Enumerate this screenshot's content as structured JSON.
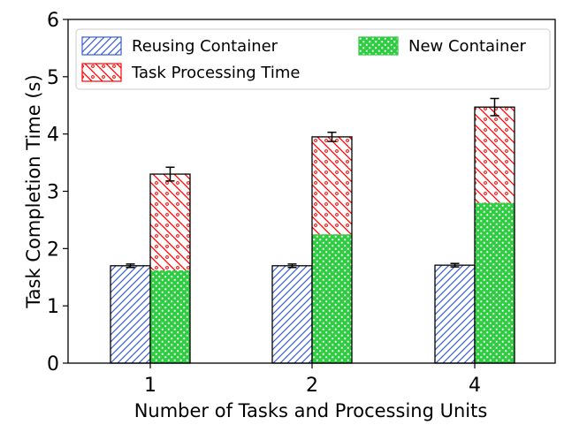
{
  "chart_data": {
    "type": "bar",
    "stacked_group": true,
    "categories": [
      "1",
      "2",
      "4"
    ],
    "xlabel": "Number of Tasks and Processing Units",
    "ylabel": "Task Completion Time (s)",
    "ylim": [
      0,
      6
    ],
    "yticks": [
      0,
      1,
      2,
      3,
      4,
      5,
      6
    ],
    "grid": false,
    "legend_position": "top",
    "series": [
      {
        "name": "Reusing Container",
        "values": [
          1.7,
          1.7,
          1.71
        ],
        "error": [
          0.03,
          0.03,
          0.03
        ],
        "color": "#3a5fcd",
        "pattern": "diagonal"
      },
      {
        "name": "New Container",
        "values": [
          1.62,
          2.25,
          2.8
        ],
        "color": "#2ecc40",
        "pattern": "dots"
      },
      {
        "name": "Task Processing Time",
        "values": [
          1.68,
          1.7,
          1.67
        ],
        "stacked_on": "New Container",
        "total": [
          3.3,
          3.95,
          4.47
        ],
        "error": [
          0.12,
          0.08,
          0.15
        ],
        "color": "#ff0000",
        "pattern": "diagonal-circles"
      }
    ]
  }
}
